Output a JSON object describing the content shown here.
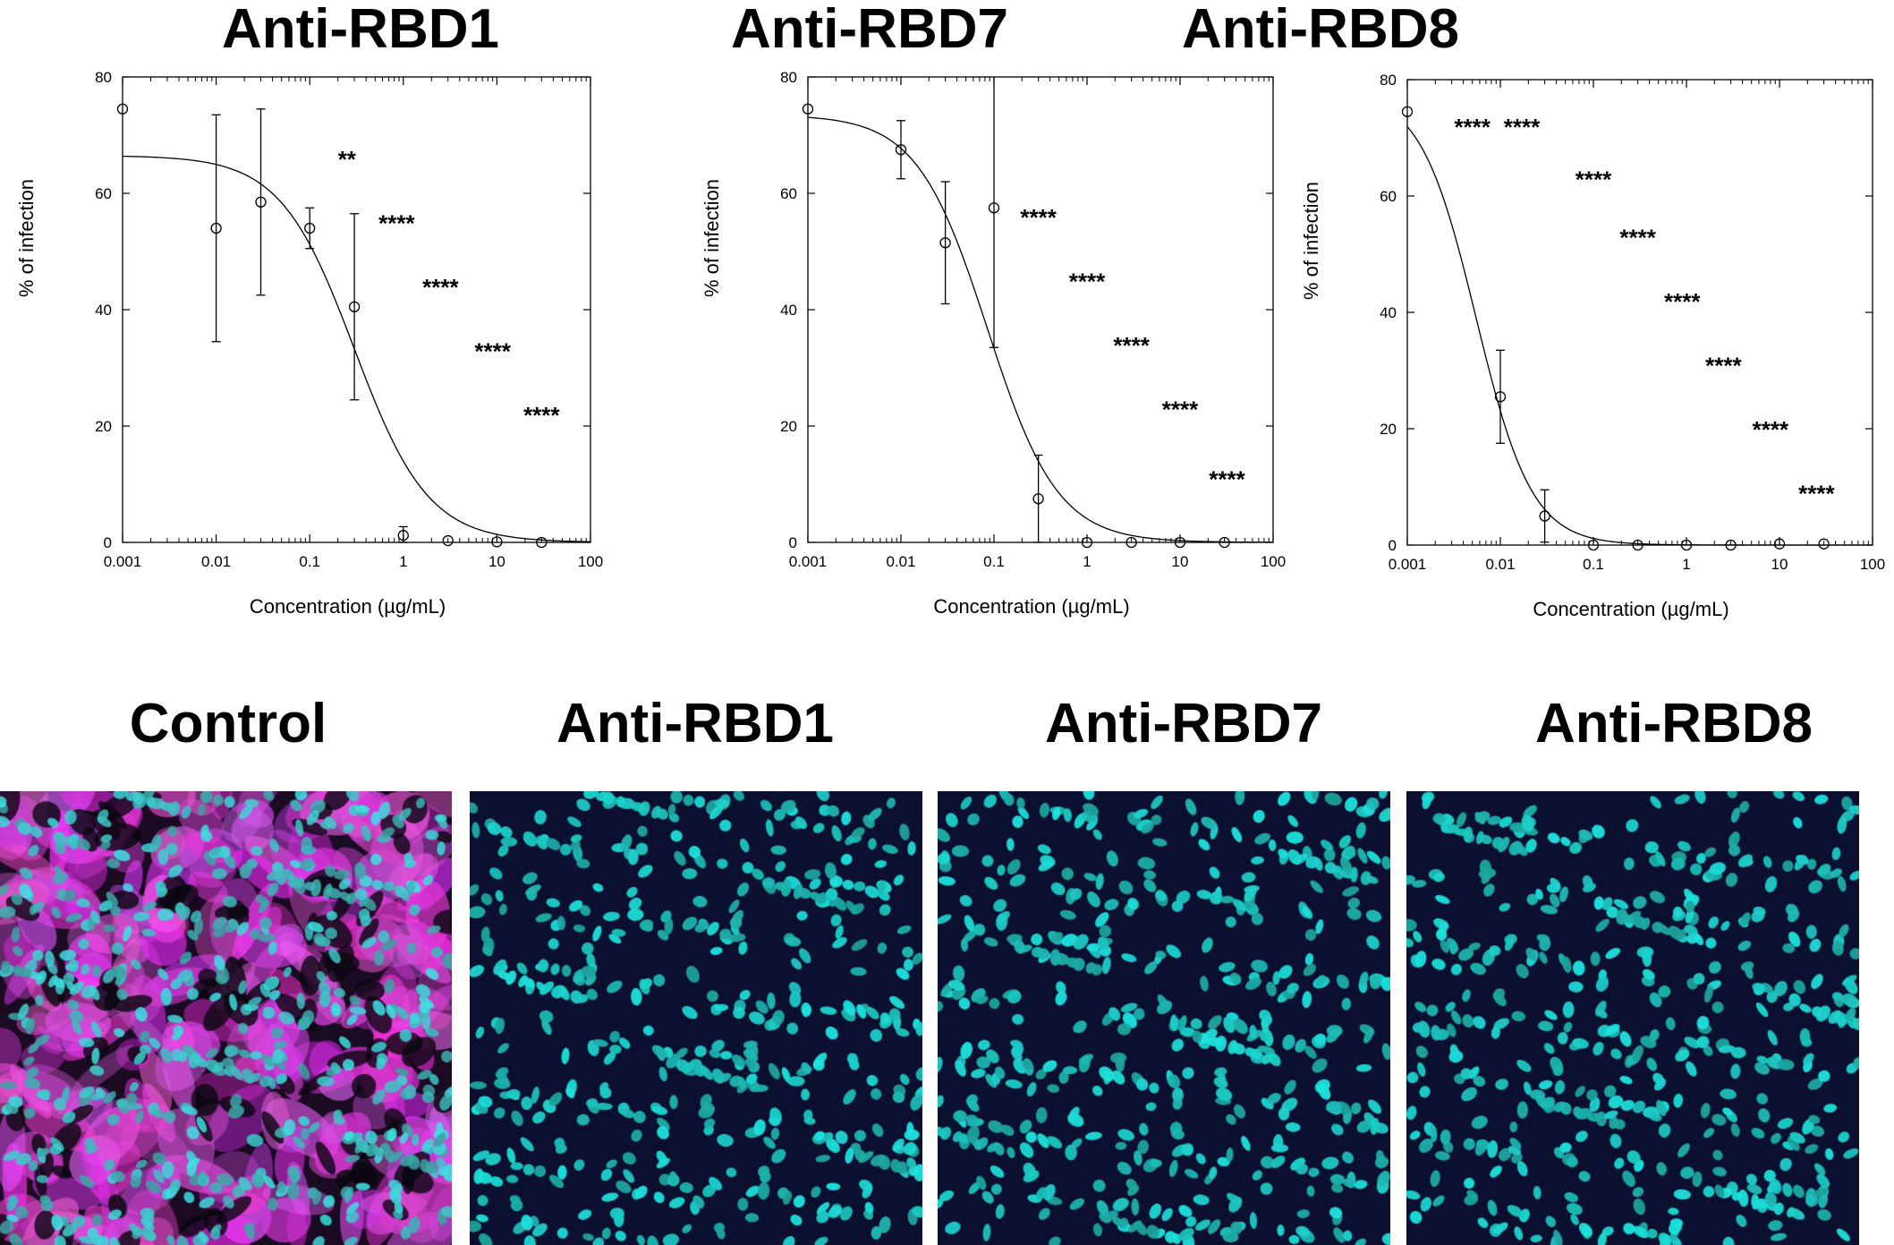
{
  "figure": {
    "micrographs": [
      {
        "title": "Control",
        "accent": "#d63bd6"
      },
      {
        "title": "Anti-RBD1",
        "accent": "#1fc7c7"
      },
      {
        "title": "Anti-RBD7",
        "accent": "#1fc7c7"
      },
      {
        "title": "Anti-RBD8",
        "accent": "#1fc7c7"
      }
    ]
  },
  "chart_data": [
    {
      "type": "scatter",
      "title": "Anti-RBD1",
      "xlabel": "Concentration (µg/mL)",
      "ylabel": "% of infection",
      "xscale": "log",
      "xlim": [
        0.001,
        100
      ],
      "ylim": [
        0,
        80
      ],
      "xticks": [
        "0.001",
        "0.01",
        "0.1",
        "1",
        "10",
        "100"
      ],
      "yticks": [
        "0",
        "20",
        "40",
        "60",
        "80"
      ],
      "points": [
        {
          "x": 0.001,
          "y": 74.5,
          "err": 0,
          "sig": ""
        },
        {
          "x": 0.01,
          "y": 54,
          "err": 19.5,
          "sig": ""
        },
        {
          "x": 0.03,
          "y": 58.5,
          "err": 16,
          "sig": ""
        },
        {
          "x": 0.1,
          "y": 54,
          "err": 3.5,
          "sig": "**"
        },
        {
          "x": 0.3,
          "y": 40.5,
          "err": 16,
          "sig": "****"
        },
        {
          "x": 1,
          "y": 1.2,
          "err": 1.5,
          "sig": "****"
        },
        {
          "x": 3,
          "y": 0.3,
          "err": 0,
          "sig": "****"
        },
        {
          "x": 10,
          "y": 0.1,
          "err": 0,
          "sig": "****"
        },
        {
          "x": 30,
          "y": 0,
          "err": 0,
          "sig": ""
        }
      ],
      "fit": {
        "top": 66.5,
        "ec50": 0.3,
        "hill": 1.1
      },
      "annotations": [
        {
          "text": "**",
          "x": 0.25,
          "y": 66
        },
        {
          "text": "****",
          "x": 0.85,
          "y": 55
        },
        {
          "text": "****",
          "x": 2.5,
          "y": 44
        },
        {
          "text": "****",
          "x": 9,
          "y": 33
        },
        {
          "text": "****",
          "x": 30,
          "y": 22
        }
      ],
      "grid": false
    },
    {
      "type": "scatter",
      "title": "Anti-RBD7",
      "xlabel": "Concentration (µg/mL)",
      "ylabel": "% of infection",
      "xscale": "log",
      "xlim": [
        0.001,
        100
      ],
      "ylim": [
        0,
        80
      ],
      "xticks": [
        "0.001",
        "0.01",
        "0.1",
        "1",
        "10",
        "100"
      ],
      "yticks": [
        "0",
        "20",
        "40",
        "60",
        "80"
      ],
      "points": [
        {
          "x": 0.001,
          "y": 74.5,
          "err": 0,
          "sig": ""
        },
        {
          "x": 0.01,
          "y": 67.5,
          "err": 5,
          "sig": ""
        },
        {
          "x": 0.03,
          "y": 51.5,
          "err": 10.5,
          "sig": ""
        },
        {
          "x": 0.1,
          "y": 57.5,
          "err": 24,
          "sig": "****"
        },
        {
          "x": 0.3,
          "y": 7.5,
          "err": 7.5,
          "sig": "****"
        },
        {
          "x": 1,
          "y": 0,
          "err": 0,
          "sig": "****"
        },
        {
          "x": 3,
          "y": 0,
          "err": 0,
          "sig": "****"
        },
        {
          "x": 10,
          "y": 0,
          "err": 0,
          "sig": "****"
        },
        {
          "x": 30,
          "y": 0,
          "err": 0,
          "sig": ""
        }
      ],
      "fit": {
        "top": 73.5,
        "ec50": 0.085,
        "hill": 1.15
      },
      "annotations": [
        {
          "text": "****",
          "x": 0.3,
          "y": 56
        },
        {
          "text": "****",
          "x": 1,
          "y": 45
        },
        {
          "text": "****",
          "x": 3,
          "y": 34
        },
        {
          "text": "****",
          "x": 10,
          "y": 23
        },
        {
          "text": "****",
          "x": 32,
          "y": 11
        }
      ],
      "grid": false
    },
    {
      "type": "scatter",
      "title": "Anti-RBD8",
      "xlabel": "Concentration (µg/mL)",
      "ylabel": "% of infection",
      "xscale": "log",
      "xlim": [
        0.001,
        100
      ],
      "ylim": [
        0,
        80
      ],
      "xticks": [
        "0.001",
        "0.01",
        "0.1",
        "1",
        "10",
        "100"
      ],
      "yticks": [
        "0",
        "20",
        "40",
        "60",
        "80"
      ],
      "points": [
        {
          "x": 0.001,
          "y": 74.5,
          "err": 0,
          "sig": ""
        },
        {
          "x": 0.01,
          "y": 25.5,
          "err": 8,
          "sig": "****"
        },
        {
          "x": 0.03,
          "y": 5,
          "err": 4.5,
          "sig": "****"
        },
        {
          "x": 0.1,
          "y": 0,
          "err": 0,
          "sig": "****"
        },
        {
          "x": 0.3,
          "y": 0,
          "err": 0,
          "sig": "****"
        },
        {
          "x": 1,
          "y": 0,
          "err": 0,
          "sig": "****"
        },
        {
          "x": 3,
          "y": 0,
          "err": 0,
          "sig": "****"
        },
        {
          "x": 10,
          "y": 0.2,
          "err": 0,
          "sig": "****"
        },
        {
          "x": 30,
          "y": 0.2,
          "err": 0,
          "sig": "****"
        }
      ],
      "fit": {
        "top": 78,
        "ec50": 0.0055,
        "hill": 1.45
      },
      "annotations": [
        {
          "text": "****",
          "x": 0.005,
          "y": 72
        },
        {
          "text": "****",
          "x": 0.017,
          "y": 72
        },
        {
          "text": "****",
          "x": 0.1,
          "y": 63
        },
        {
          "text": "****",
          "x": 0.3,
          "y": 53
        },
        {
          "text": "****",
          "x": 0.9,
          "y": 42
        },
        {
          "text": "****",
          "x": 2.5,
          "y": 31
        },
        {
          "text": "****",
          "x": 8,
          "y": 20
        },
        {
          "text": "****",
          "x": 25,
          "y": 9
        }
      ],
      "grid": false
    }
  ]
}
